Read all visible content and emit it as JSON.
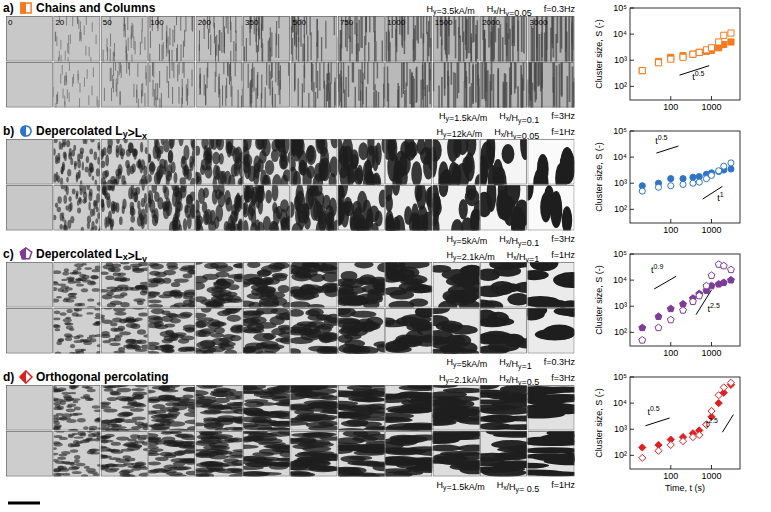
{
  "figure": {
    "time_labels": [
      0,
      20,
      50,
      100,
      200,
      350,
      500,
      750,
      1000,
      1500,
      2000,
      3000
    ],
    "panels": [
      {
        "letter": "a)",
        "title": "Chains and Columns",
        "conditions_top": [
          "Hy=3.5kA/m",
          "Hx/Hy=0.05",
          "f=0.3Hz"
        ],
        "conditions_bottom": [
          "Hy=1.5kA/m",
          "Hx/Hy=0.1",
          "f=3Hz"
        ]
      },
      {
        "letter": "b)",
        "title": "Depercolated Ly>Lx",
        "conditions_top": [
          "Hy=12kA/m",
          "Hx/Hy=0.05",
          "f=1Hz"
        ],
        "conditions_bottom": [
          "Hy=5kA/m",
          "Hx/Hy=0.1",
          "f=3Hz"
        ]
      },
      {
        "letter": "c)",
        "title": "Depercolated Lx>Ly",
        "conditions_top": [
          "Hy=2.1kA/m",
          "Hx/Hy=1",
          "f=1Hz"
        ],
        "conditions_bottom": [
          "Hy=5kA/m",
          "Hx/Hy=1",
          "f=0.3Hz"
        ]
      },
      {
        "letter": "d)",
        "title": "Orthogonal percolating",
        "conditions_top": [
          "Hy=2.1kA/m",
          "Hx/Hy=0.5",
          "f=3Hz"
        ],
        "conditions_bottom": [
          "Hy=1.5kA/m",
          "Hx/Hy= 0.5",
          "f=1Hz"
        ]
      }
    ]
  },
  "chart_data": [
    {
      "type": "scatter",
      "y_label": "Cluster size, S (-)",
      "x": [
        20,
        50,
        100,
        200,
        350,
        500,
        750,
        1000,
        1500,
        2000,
        3000
      ],
      "series": [
        {
          "color": "#f47b20",
          "marker": "square",
          "values": [
            400,
            900,
            1300,
            1500,
            1700,
            2000,
            2200,
            2400,
            3000,
            4000,
            5000
          ]
        },
        {
          "color": "#f47b20",
          "marker": "square-open",
          "values": [
            400,
            800,
            1100,
            1300,
            1700,
            2000,
            2500,
            3000,
            5000,
            9000,
            11000
          ]
        }
      ],
      "xlim": [
        10,
        5000
      ],
      "ylim": [
        30,
        100000
      ],
      "xticks": [
        100,
        1000
      ],
      "yticks": [
        {
          "value": 100,
          "label": "10²"
        },
        {
          "value": 1000,
          "label": "10³"
        },
        {
          "value": 10000,
          "label": "10⁴"
        },
        {
          "value": 100000,
          "label": "10⁵"
        }
      ],
      "log": true,
      "annotations": [
        {
          "label": "t",
          "exponent": 0.5
        }
      ]
    },
    {
      "type": "scatter",
      "y_label": "Cluster size, S (-)",
      "x": [
        20,
        50,
        100,
        200,
        350,
        500,
        750,
        1000,
        1500,
        2000,
        3000
      ],
      "series": [
        {
          "color": "#2e75c8",
          "marker": "circle",
          "values": [
            800,
            1000,
            1500,
            1500,
            1700,
            1800,
            2200,
            2500,
            2800,
            3200,
            3500
          ]
        },
        {
          "color": "#2e75c8",
          "marker": "circle-open",
          "values": [
            500,
            700,
            800,
            900,
            1000,
            1100,
            1500,
            2000,
            3000,
            4500,
            6000
          ]
        }
      ],
      "xlim": [
        10,
        5000
      ],
      "ylim": [
        30,
        100000
      ],
      "xticks": [
        100,
        1000
      ],
      "yticks": [
        {
          "value": 100,
          "label": "10²"
        },
        {
          "value": 1000,
          "label": "10³"
        },
        {
          "value": 10000,
          "label": "10⁴"
        },
        {
          "value": 100000,
          "label": "10⁵"
        }
      ],
      "log": true,
      "annotations": [
        {
          "label": "t",
          "exponent": 0.5
        },
        {
          "label": "t",
          "exponent": 1
        }
      ]
    },
    {
      "type": "scatter",
      "y_label": "Cluster size, S (-)",
      "x": [
        20,
        50,
        100,
        200,
        350,
        500,
        750,
        1000,
        1500,
        2000,
        3000
      ],
      "series": [
        {
          "color": "#7d3c98",
          "marker": "pentagon",
          "values": [
            150,
            400,
            800,
            1200,
            2000,
            3000,
            4000,
            6000,
            7000,
            8000,
            10000
          ]
        },
        {
          "color": "#7d3c98",
          "marker": "pentagon-open",
          "values": [
            50,
            150,
            300,
            700,
            1500,
            2500,
            6000,
            15000,
            40000,
            35000,
            25000
          ]
        }
      ],
      "xlim": [
        10,
        5000
      ],
      "ylim": [
        30,
        100000
      ],
      "xticks": [
        100,
        1000
      ],
      "yticks": [
        {
          "value": 100,
          "label": "10²"
        },
        {
          "value": 1000,
          "label": "10³"
        },
        {
          "value": 10000,
          "label": "10⁴"
        },
        {
          "value": 100000,
          "label": "10⁵"
        }
      ],
      "log": true,
      "annotations": [
        {
          "label": "t",
          "exponent": 0.9
        },
        {
          "label": "t",
          "exponent": 2.5
        }
      ]
    },
    {
      "type": "scatter",
      "y_label": "Cluster size, S (-)",
      "x_label": "Time, t (s)",
      "x": [
        20,
        50,
        100,
        200,
        350,
        500,
        750,
        1000,
        1500,
        2000,
        3000
      ],
      "series": [
        {
          "color": "#e02020",
          "marker": "diamond",
          "values": [
            200,
            250,
            400,
            500,
            700,
            900,
            1500,
            3000,
            10000,
            25000,
            50000
          ]
        },
        {
          "color": "#e02020",
          "marker": "diamond-open",
          "values": [
            80,
            150,
            250,
            350,
            500,
            600,
            1500,
            5000,
            20000,
            40000,
            60000
          ]
        }
      ],
      "xlim": [
        10,
        5000
      ],
      "ylim": [
        30,
        100000
      ],
      "xticks": [
        100,
        1000
      ],
      "yticks": [
        {
          "value": 100,
          "label": "10²"
        },
        {
          "value": 1000,
          "label": "10³"
        },
        {
          "value": 10000,
          "label": "10⁴"
        },
        {
          "value": 100000,
          "label": "10⁵"
        }
      ],
      "log": true,
      "annotations": [
        {
          "label": "t",
          "exponent": 0.5
        },
        {
          "label": "t",
          "exponent": 2.5
        }
      ]
    }
  ]
}
